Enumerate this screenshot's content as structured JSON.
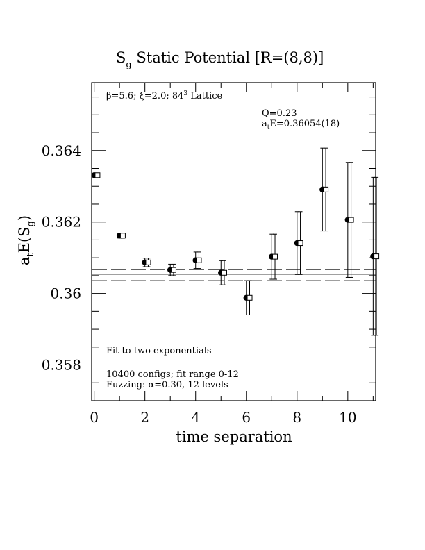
{
  "chart_data": {
    "type": "scatter",
    "title": {
      "main": "S",
      "sub": "g",
      "rest": " Static Potential [R=(8,8)]"
    },
    "xlabel": "time separation",
    "ylabel": {
      "a": "a",
      "a_sub": "t",
      "mid": "E(S",
      "s_sub": "g",
      "end": ")"
    },
    "xlim": [
      -0.1,
      11.1
    ],
    "ylim": [
      0.357,
      0.3659
    ],
    "x_ticks": [
      0,
      2,
      4,
      6,
      8,
      10
    ],
    "x_tick_labels": [
      "0",
      "2",
      "4",
      "6",
      "8",
      "10"
    ],
    "y_ticks": [
      0.358,
      0.36,
      0.362,
      0.364
    ],
    "y_tick_labels": [
      "0.358",
      "0.36",
      "0.362",
      "0.364"
    ],
    "annotations": {
      "lattice": {
        "beta": "β=5.6; ",
        "xi": "ξ=2.0; 84",
        "sup": "3",
        "rest": " Lattice"
      },
      "q": "Q=0.23",
      "energy": {
        "a": "a",
        "sub": "t",
        "rest": "E=0.36054(18)"
      },
      "fit": "Fit to two exponentials",
      "configs": "10400 configs; fit range 0-12",
      "fuzzing": "Fuzzing: α=0.30, 12 levels"
    },
    "fit_band": {
      "center": 0.36054,
      "upper": 0.36067,
      "lower": 0.36036
    },
    "series": [
      {
        "marker": "filled-circle",
        "x": [
          0,
          1,
          2,
          3,
          4,
          5,
          6,
          7,
          8,
          9,
          10,
          11
        ],
        "y": [
          0.36331,
          0.36162,
          0.36087,
          0.36066,
          0.36093,
          0.36058,
          0.35988,
          0.36103,
          0.36141,
          0.36291,
          0.36206,
          0.36104
        ],
        "err": [
          2e-05,
          7e-05,
          0.00012,
          0.00016,
          0.00023,
          0.00034,
          0.00048,
          0.00063,
          0.00088,
          0.00116,
          0.00161,
          0.00221
        ]
      },
      {
        "marker": "open-square",
        "x": [
          0,
          1,
          2,
          3,
          4,
          5,
          6,
          7,
          8,
          9,
          10,
          11
        ],
        "y": [
          0.36331,
          0.36162,
          0.36087,
          0.36066,
          0.36093,
          0.36058,
          0.35988,
          0.36103,
          0.36141,
          0.36291,
          0.36206,
          0.36104
        ],
        "err": [
          2e-05,
          7e-05,
          0.00012,
          0.00016,
          0.00023,
          0.00034,
          0.00048,
          0.00063,
          0.00088,
          0.00116,
          0.00161,
          0.00221
        ]
      }
    ]
  }
}
